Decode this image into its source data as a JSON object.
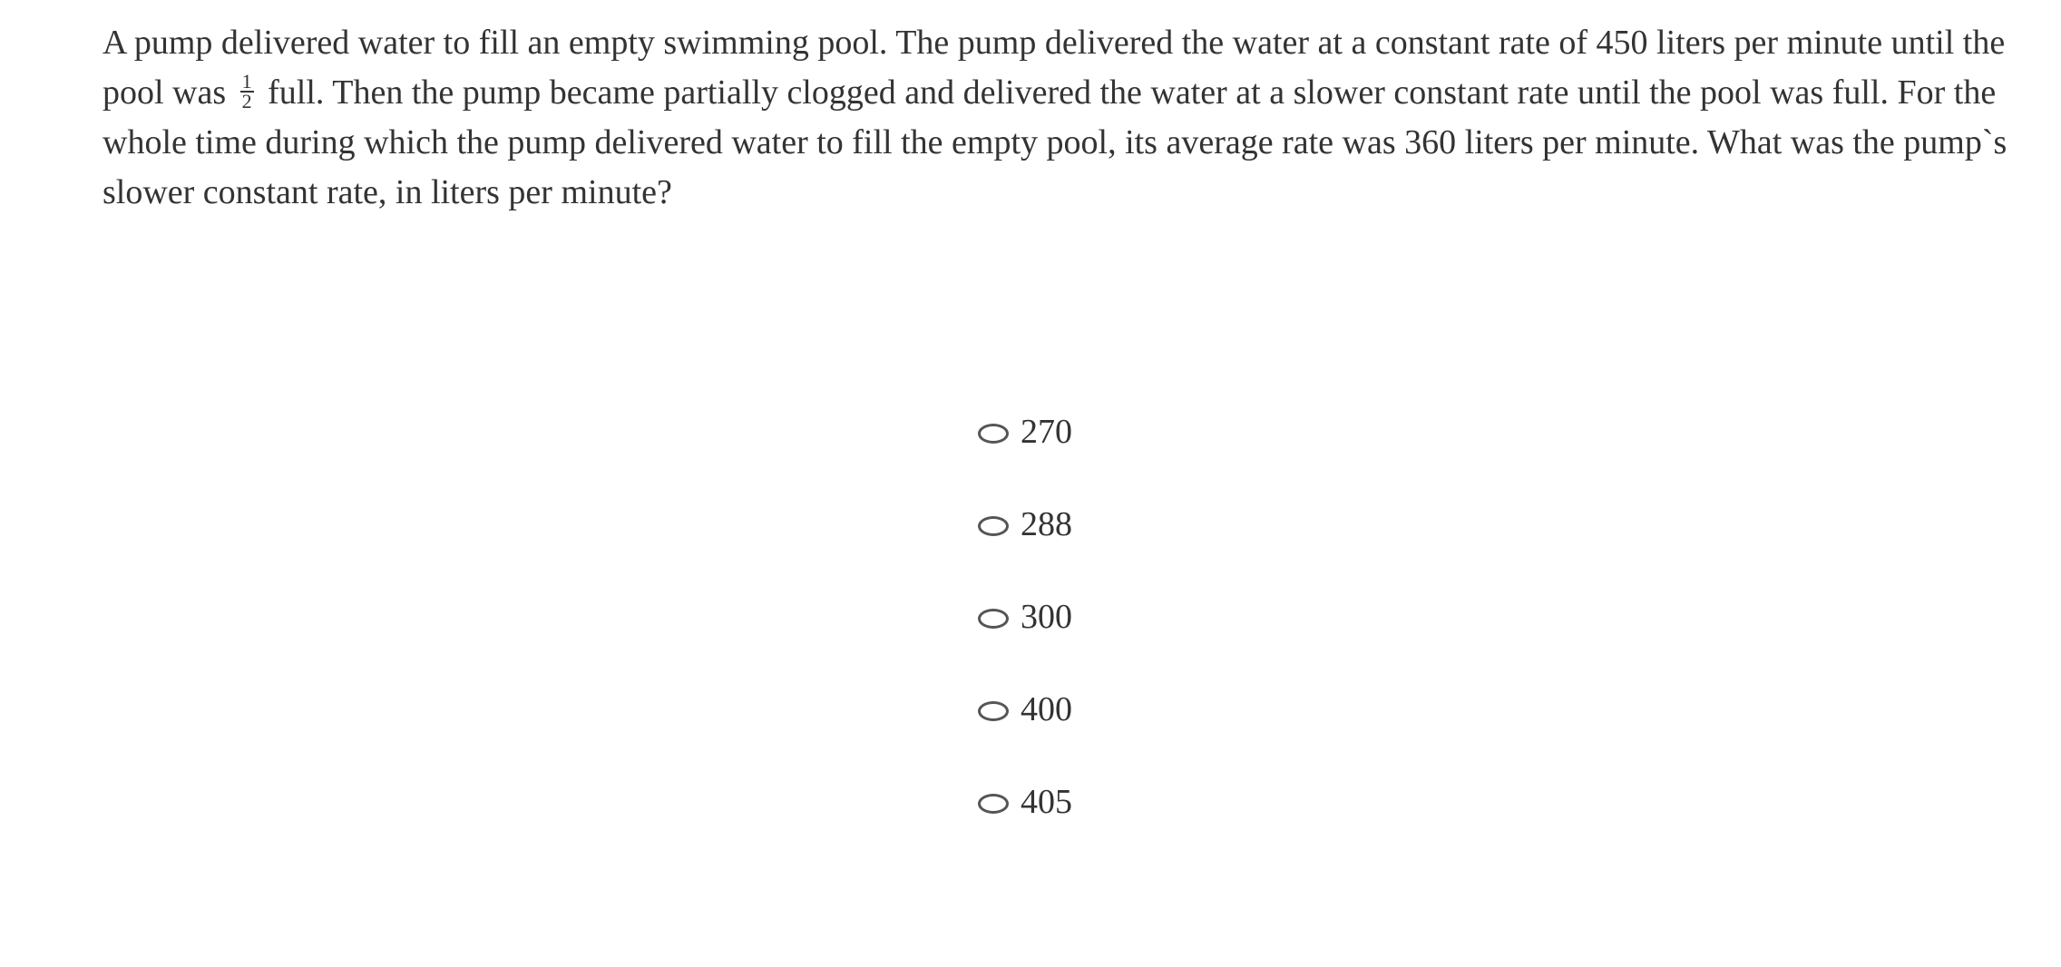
{
  "question": {
    "part1": "A pump delivered water to fill an empty swimming pool. The pump delivered the water at a constant rate of 450 liters per minute until the pool was",
    "fraction": {
      "numerator": "1",
      "denominator": "2"
    },
    "part2": "full. Then the pump became partially clogged and delivered the water at a slower constant rate until the pool was full. For the whole time during which the pump delivered water to fill the empty pool, its average rate was 360 liters per minute. What was the pump`s slower constant rate, in liters per minute?"
  },
  "options": [
    {
      "label": "270",
      "selected": false
    },
    {
      "label": "288",
      "selected": false
    },
    {
      "label": "300",
      "selected": false
    },
    {
      "label": "400",
      "selected": false
    },
    {
      "label": "405",
      "selected": false
    }
  ]
}
